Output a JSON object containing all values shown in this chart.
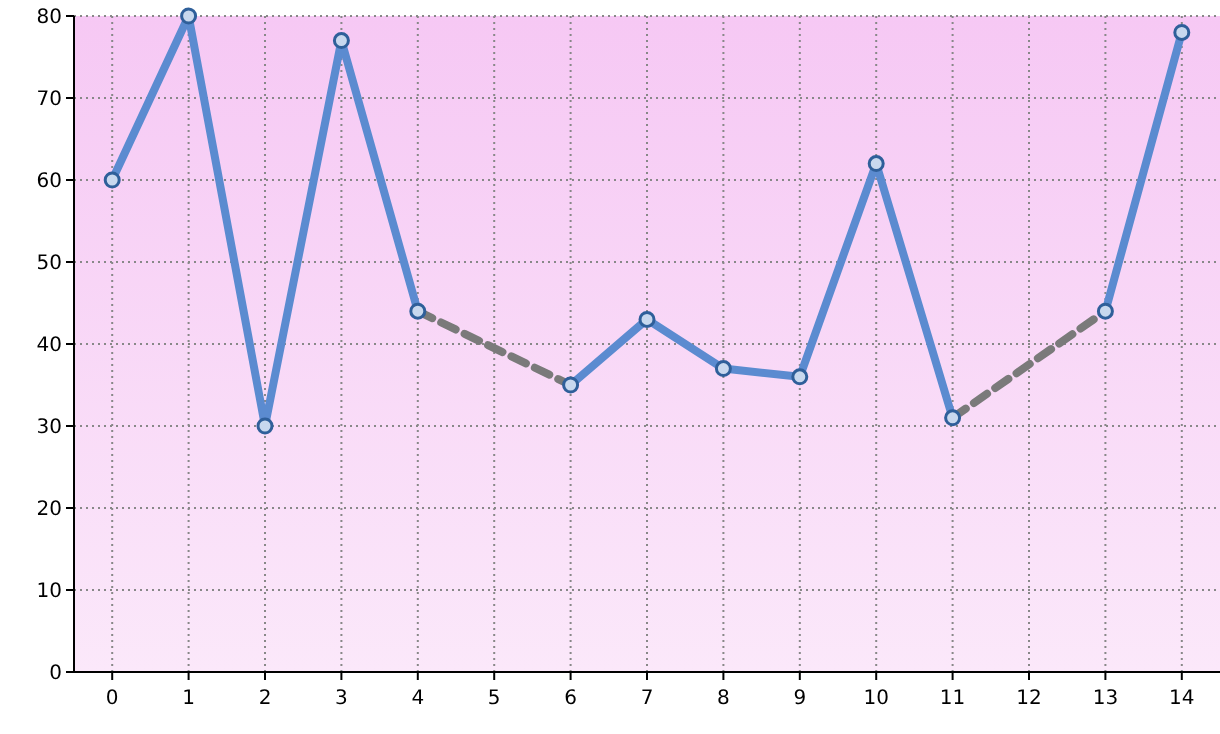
{
  "chart_data": {
    "type": "line",
    "x": [
      0,
      1,
      2,
      3,
      4,
      5,
      6,
      7,
      8,
      9,
      10,
      11,
      12,
      13,
      14
    ],
    "series": [
      {
        "color": "#5b8bd0",
        "values": [
          60,
          80,
          30,
          77,
          44,
          null,
          35,
          43,
          37,
          36,
          62,
          31,
          null,
          44,
          78
        ],
        "marker": "circle",
        "line_style": "solid"
      },
      {
        "color": "#7a7a7a",
        "x": [
          4,
          6
        ],
        "values": [
          44,
          35
        ],
        "marker": "none",
        "line_style": "dashed"
      },
      {
        "color": "#7a7a7a",
        "x": [
          11,
          13
        ],
        "values": [
          31,
          44
        ],
        "marker": "none",
        "line_style": "dashed"
      }
    ],
    "xlim": [
      -0.5,
      14.5
    ],
    "xticks": [
      0,
      1,
      2,
      3,
      4,
      5,
      6,
      7,
      8,
      9,
      10,
      11,
      12,
      13,
      14
    ],
    "ylim": [
      0,
      80
    ],
    "yticks": [
      0,
      10,
      20,
      30,
      40,
      50,
      60,
      70,
      80
    ],
    "grid": true
  }
}
